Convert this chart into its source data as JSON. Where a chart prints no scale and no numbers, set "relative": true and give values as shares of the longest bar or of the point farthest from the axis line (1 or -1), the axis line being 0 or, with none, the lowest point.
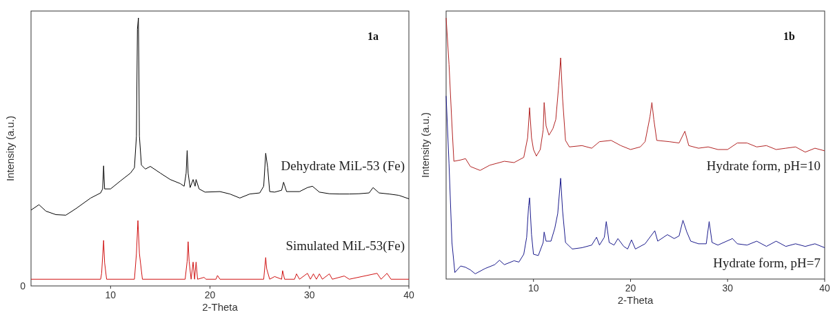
{
  "chart_data": [
    {
      "type": "line",
      "annotations": [
        "1a",
        "0"
      ],
      "xlabel": "2-Theta",
      "ylabel": "Intensity (a.u.)",
      "xlim": [
        2,
        40
      ],
      "xticks": [
        10,
        20,
        30,
        40
      ],
      "relative": true,
      "series": [
        {
          "name": "Dehydrate MiL-53 (Fe)",
          "color": "#000000",
          "x": [
            2,
            2.8,
            3.5,
            4.5,
            5.5,
            6.5,
            8,
            9,
            9.2,
            9.3,
            9.4,
            10,
            11,
            12,
            12.4,
            12.6,
            12.7,
            12.8,
            12.9,
            13.1,
            13.5,
            14,
            15,
            16,
            17,
            17.4,
            17.6,
            17.7,
            17.8,
            18,
            18.3,
            18.5,
            18.6,
            18.9,
            19.5,
            21,
            22,
            23,
            24,
            25,
            25.4,
            25.6,
            25.8,
            26,
            26.5,
            27.2,
            27.4,
            27.7,
            29,
            29.8,
            30.3,
            31,
            32,
            33,
            34,
            35,
            36,
            36.4,
            37,
            38,
            39,
            40
          ],
          "values": [
            0.283,
            0.303,
            0.279,
            0.266,
            0.264,
            0.288,
            0.328,
            0.347,
            0.362,
            0.448,
            0.362,
            0.362,
            0.392,
            0.421,
            0.441,
            0.559,
            0.958,
            1,
            0.559,
            0.451,
            0.436,
            0.446,
            0.421,
            0.397,
            0.382,
            0.372,
            0.421,
            0.505,
            0.421,
            0.367,
            0.397,
            0.372,
            0.397,
            0.362,
            0.35,
            0.352,
            0.343,
            0.328,
            0.343,
            0.347,
            0.372,
            0.495,
            0.441,
            0.352,
            0.35,
            0.357,
            0.387,
            0.352,
            0.352,
            0.367,
            0.372,
            0.35,
            0.344,
            0.343,
            0.343,
            0.344,
            0.347,
            0.367,
            0.347,
            0.343,
            0.338,
            0.325
          ]
        },
        {
          "name": "Simulated MiL-53(Fe)",
          "color": "#d01010",
          "x": [
            2,
            9,
            9.1,
            9.3,
            9.4,
            9.6,
            12.4,
            12.6,
            12.75,
            12.9,
            13.2,
            17.5,
            17.7,
            17.8,
            17.9,
            18.1,
            18.3,
            18.45,
            18.6,
            18.75,
            19.4,
            19.6,
            20.6,
            20.75,
            21,
            25.4,
            25.6,
            25.7,
            26,
            26.5,
            27.2,
            27.3,
            27.5,
            28.5,
            28.7,
            29,
            29.8,
            30.1,
            30.4,
            30.7,
            31,
            31.3,
            32,
            32.3,
            33.5,
            34,
            36.8,
            37.2,
            37.8,
            38.2,
            40
          ],
          "values": [
            0.025,
            0.025,
            0.047,
            0.17,
            0.087,
            0.025,
            0.025,
            0.121,
            0.244,
            0.121,
            0.025,
            0.025,
            0.092,
            0.165,
            0.092,
            0.025,
            0.089,
            0.025,
            0.089,
            0.025,
            0.032,
            0.025,
            0.025,
            0.039,
            0.025,
            0.025,
            0.106,
            0.064,
            0.025,
            0.035,
            0.025,
            0.057,
            0.025,
            0.025,
            0.045,
            0.025,
            0.047,
            0.025,
            0.045,
            0.025,
            0.045,
            0.025,
            0.045,
            0.025,
            0.037,
            0.025,
            0.047,
            0.025,
            0.047,
            0.025,
            0.025
          ]
        }
      ]
    },
    {
      "type": "line",
      "annotations": [
        "1b"
      ],
      "xlabel": "2-Theta",
      "ylabel": "Intensity (a.u.)",
      "xlim": [
        1,
        40
      ],
      "xticks": [
        10,
        20,
        30,
        40
      ],
      "relative": true,
      "series": [
        {
          "name": "Hydrate form, pH=10",
          "color": "#b22222",
          "x": [
            1,
            1.3,
            1.6,
            1.8,
            2.5,
            3,
            3.5,
            4.5,
            5.5,
            7,
            8,
            9,
            9.4,
            9.6,
            9.8,
            10,
            10.3,
            10.7,
            11,
            11.1,
            11.3,
            11.6,
            12,
            12.3,
            12.6,
            12.8,
            13,
            13.3,
            13.7,
            15,
            16,
            16.8,
            18,
            19,
            20,
            21,
            21.5,
            22,
            22.2,
            22.4,
            22.7,
            24,
            25,
            25.6,
            26,
            27,
            28,
            29,
            30,
            31,
            32,
            33,
            34,
            35,
            36,
            37,
            38,
            39,
            40
          ],
          "values": [
            1,
            0.822,
            0.591,
            0.451,
            0.456,
            0.461,
            0.431,
            0.416,
            0.436,
            0.451,
            0.446,
            0.466,
            0.541,
            0.656,
            0.541,
            0.496,
            0.471,
            0.496,
            0.571,
            0.676,
            0.586,
            0.551,
            0.576,
            0.611,
            0.741,
            0.847,
            0.691,
            0.531,
            0.506,
            0.511,
            0.501,
            0.526,
            0.531,
            0.511,
            0.496,
            0.506,
            0.526,
            0.621,
            0.676,
            0.611,
            0.531,
            0.526,
            0.521,
            0.566,
            0.511,
            0.501,
            0.506,
            0.496,
            0.496,
            0.521,
            0.521,
            0.506,
            0.511,
            0.496,
            0.501,
            0.506,
            0.486,
            0.501,
            0.491
          ]
        },
        {
          "name": "Hydrate form, pH=7",
          "color": "#1a1a8c",
          "x": [
            1,
            1.3,
            1.6,
            1.9,
            2.5,
            3,
            3.5,
            4,
            5,
            6,
            6.5,
            7,
            8,
            8.5,
            9,
            9.3,
            9.5,
            9.6,
            9.8,
            10,
            10.5,
            11,
            11.1,
            11.3,
            11.8,
            12.2,
            12.5,
            12.8,
            13,
            13.3,
            14,
            15,
            16,
            16.5,
            16.8,
            17.3,
            17.5,
            17.8,
            18.3,
            18.7,
            19.3,
            19.7,
            20.1,
            20.5,
            21.5,
            22.5,
            22.8,
            23.8,
            24.5,
            25,
            25.4,
            25.8,
            26.2,
            27,
            27.8,
            28.1,
            28.4,
            29,
            30.5,
            31,
            32,
            33,
            34,
            35,
            36,
            37,
            38,
            39,
            40
          ],
          "values": [
            0.701,
            0.441,
            0.14,
            0.025,
            0.05,
            0.045,
            0.035,
            0.02,
            0.04,
            0.055,
            0.072,
            0.055,
            0.07,
            0.065,
            0.095,
            0.16,
            0.281,
            0.311,
            0.17,
            0.095,
            0.09,
            0.14,
            0.18,
            0.145,
            0.145,
            0.195,
            0.251,
            0.386,
            0.261,
            0.14,
            0.115,
            0.12,
            0.13,
            0.16,
            0.13,
            0.16,
            0.22,
            0.14,
            0.13,
            0.155,
            0.125,
            0.115,
            0.15,
            0.115,
            0.135,
            0.185,
            0.145,
            0.17,
            0.155,
            0.165,
            0.225,
            0.18,
            0.145,
            0.135,
            0.135,
            0.22,
            0.14,
            0.13,
            0.155,
            0.135,
            0.13,
            0.145,
            0.125,
            0.145,
            0.125,
            0.135,
            0.125,
            0.135,
            0.12
          ]
        }
      ]
    }
  ]
}
